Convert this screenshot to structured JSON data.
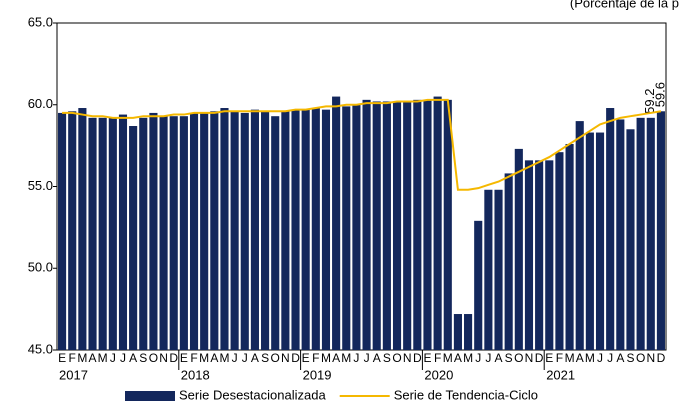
{
  "chart_data": {
    "type": "bar",
    "title": "(Porcentaje de la p",
    "categories": [
      "E",
      "F",
      "M",
      "A",
      "M",
      "J",
      "J",
      "A",
      "S",
      "O",
      "N",
      "D",
      "E",
      "F",
      "M",
      "A",
      "M",
      "J",
      "J",
      "A",
      "S",
      "O",
      "N",
      "D",
      "E",
      "F",
      "M",
      "A",
      "M",
      "J",
      "J",
      "A",
      "S",
      "O",
      "N",
      "D",
      "E",
      "F",
      "M",
      "A",
      "M",
      "J",
      "J",
      "A",
      "S",
      "O",
      "N",
      "D",
      "E",
      "F",
      "M",
      "A",
      "M",
      "J",
      "J",
      "A",
      "S",
      "O",
      "N",
      "D"
    ],
    "years": [
      "2017",
      "2018",
      "2019",
      "2020",
      "2021"
    ],
    "ylim": [
      45,
      65
    ],
    "yticks": [
      {
        "value": 45,
        "label": "45.0"
      },
      {
        "value": 50,
        "label": "50.0"
      },
      {
        "value": 55,
        "label": "55.0"
      },
      {
        "value": 60,
        "label": "60.0"
      },
      {
        "value": 65,
        "label": "65.0"
      }
    ],
    "grid": false,
    "series": [
      {
        "name": "Serie Desestacionalizada",
        "type": "bar",
        "color": "#13275c",
        "values": [
          59.5,
          59.6,
          59.8,
          59.2,
          59.2,
          59.2,
          59.4,
          58.7,
          59.2,
          59.5,
          59.3,
          59.3,
          59.3,
          59.5,
          59.5,
          59.6,
          59.8,
          59.6,
          59.5,
          59.7,
          59.6,
          59.3,
          59.6,
          59.7,
          59.7,
          59.8,
          59.7,
          60.5,
          59.9,
          60.0,
          60.3,
          60.2,
          60.2,
          60.2,
          60.2,
          60.3,
          60.3,
          60.5,
          60.3,
          47.2,
          47.2,
          52.9,
          54.8,
          54.8,
          55.8,
          57.3,
          56.6,
          56.6,
          56.6,
          57.1,
          57.6,
          59.0,
          58.3,
          58.3,
          59.8,
          59.1,
          58.5,
          59.2,
          59.2,
          59.6
        ],
        "value_labels": [
          null,
          null,
          null,
          null,
          null,
          null,
          null,
          null,
          null,
          null,
          null,
          null,
          null,
          null,
          null,
          null,
          null,
          null,
          null,
          null,
          null,
          null,
          null,
          null,
          null,
          null,
          null,
          null,
          null,
          null,
          null,
          null,
          null,
          null,
          null,
          null,
          null,
          null,
          null,
          null,
          null,
          null,
          null,
          null,
          null,
          null,
          null,
          null,
          null,
          null,
          null,
          null,
          null,
          null,
          null,
          null,
          null,
          null,
          "59.2",
          "59.6"
        ]
      },
      {
        "name": "Serie de Tendencia-Ciclo",
        "type": "line",
        "color": "#f5b800",
        "values": [
          59.5,
          59.5,
          59.4,
          59.3,
          59.3,
          59.2,
          59.2,
          59.2,
          59.3,
          59.3,
          59.3,
          59.4,
          59.4,
          59.5,
          59.5,
          59.5,
          59.6,
          59.6,
          59.6,
          59.6,
          59.6,
          59.6,
          59.6,
          59.7,
          59.7,
          59.8,
          59.9,
          59.9,
          60.0,
          60.0,
          60.1,
          60.1,
          60.1,
          60.2,
          60.2,
          60.2,
          60.3,
          60.3,
          60.3,
          54.8,
          54.8,
          54.9,
          55.1,
          55.3,
          55.6,
          55.9,
          56.2,
          56.5,
          56.8,
          57.2,
          57.6,
          58.0,
          58.4,
          58.8,
          59.0,
          59.2,
          59.3,
          59.4,
          59.5,
          59.6
        ]
      }
    ]
  }
}
